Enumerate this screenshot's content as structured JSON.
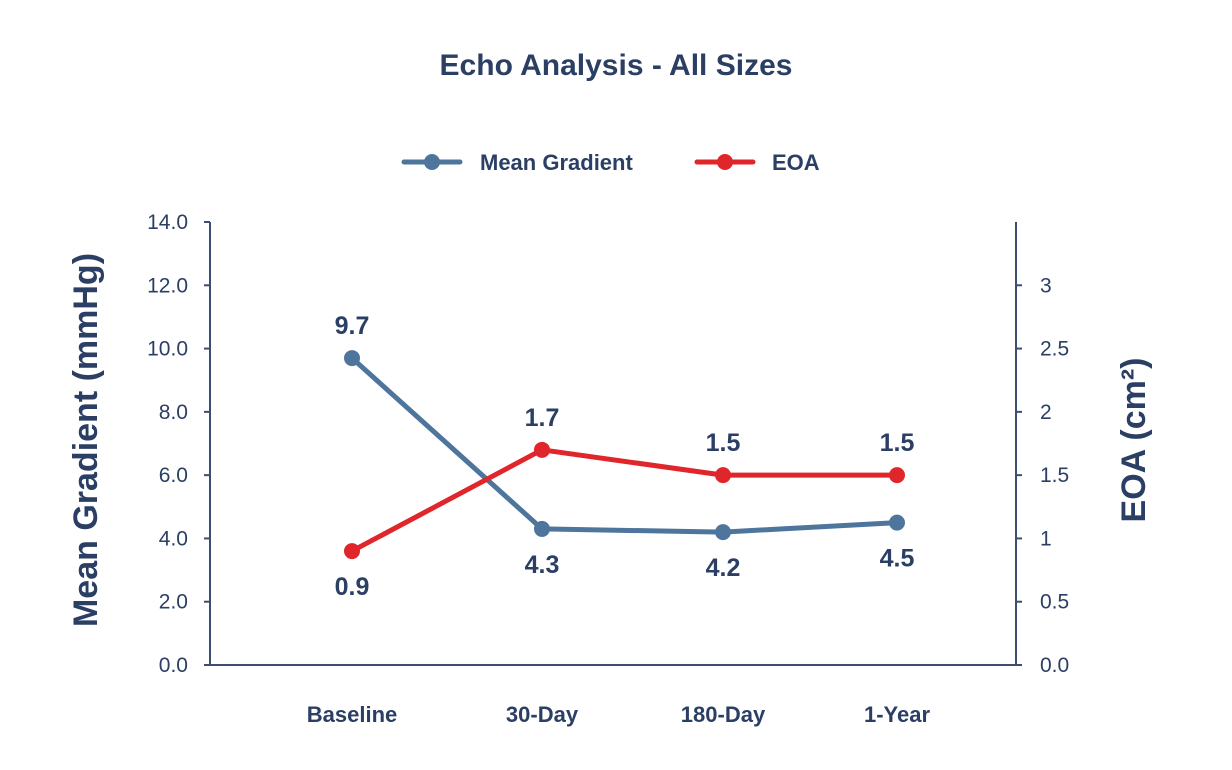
{
  "colors": {
    "text": "#2b3f64",
    "axis": "#3a4e72",
    "mean_gradient": "#4e759c",
    "eoa": "#e0262b"
  },
  "chart_data": {
    "type": "line",
    "title": "Echo Analysis - All Sizes",
    "categories": [
      "Baseline",
      "30-Day",
      "180-Day",
      "1-Year"
    ],
    "series": [
      {
        "name": "Mean Gradient",
        "axis": "left",
        "values": [
          9.7,
          4.3,
          4.2,
          4.5
        ],
        "labels": [
          "9.7",
          "4.3",
          "4.2",
          "4.5"
        ],
        "label_position": [
          "above",
          "below",
          "below",
          "below"
        ]
      },
      {
        "name": "EOA",
        "axis": "right",
        "values": [
          0.9,
          1.7,
          1.5,
          1.5
        ],
        "labels": [
          "0.9",
          "1.7",
          "1.5",
          "1.5"
        ],
        "label_position": [
          "below",
          "above",
          "above",
          "above"
        ]
      }
    ],
    "left_axis": {
      "label": "Mean Gradient (mmHg)",
      "ylim": [
        0,
        14
      ],
      "ticks": [
        "0.0",
        "2.0",
        "4.0",
        "6.0",
        "8.0",
        "10.0",
        "12.0",
        "14.0"
      ]
    },
    "right_axis": {
      "label": "EOA (cm²)",
      "ylim": [
        0,
        3.5
      ],
      "ticks": [
        "0.0",
        "0.5",
        "1",
        "1.5",
        "2",
        "2.5",
        "3"
      ]
    },
    "grid": false,
    "legend_position": "top-center"
  }
}
